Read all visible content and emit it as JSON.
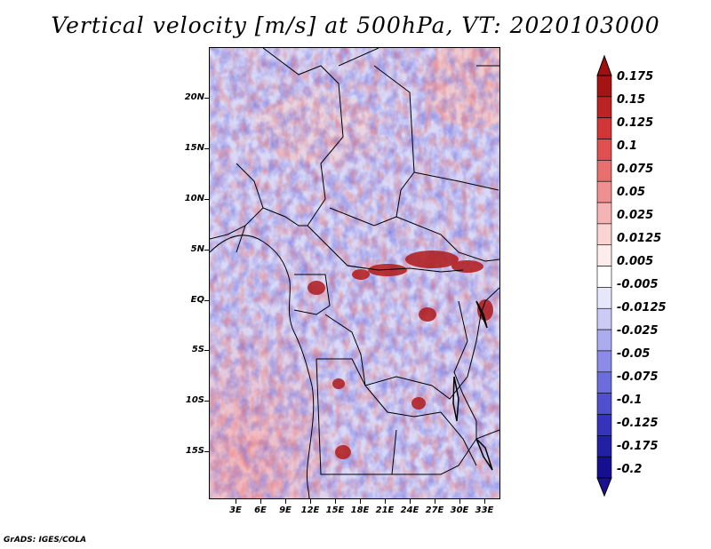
{
  "title": "Vertical velocity [m/s] at 500hPa, VT: 2020103000",
  "footer": "GrADS: IGES/COLA",
  "map": {
    "field": "vertical velocity",
    "level": "500hPa",
    "valid_time": "2020103000",
    "lon_range_deg": [
      0,
      35
    ],
    "lat_range_deg": [
      -20,
      25
    ],
    "lat_ticks": [
      {
        "value": 20,
        "label": "20N"
      },
      {
        "value": 15,
        "label": "15N"
      },
      {
        "value": 10,
        "label": "10N"
      },
      {
        "value": 5,
        "label": "5N"
      },
      {
        "value": 0,
        "label": "EQ"
      },
      {
        "value": -5,
        "label": "5S"
      },
      {
        "value": -10,
        "label": "10S"
      },
      {
        "value": -15,
        "label": "15S"
      }
    ],
    "lon_ticks": [
      {
        "value": 3,
        "label": "3E"
      },
      {
        "value": 6,
        "label": "6E"
      },
      {
        "value": 9,
        "label": "9E"
      },
      {
        "value": 12,
        "label": "12E"
      },
      {
        "value": 15,
        "label": "15E"
      },
      {
        "value": 18,
        "label": "18E"
      },
      {
        "value": 21,
        "label": "21E"
      },
      {
        "value": 24,
        "label": "24E"
      },
      {
        "value": 27,
        "label": "27E"
      },
      {
        "value": 30,
        "label": "30E"
      },
      {
        "value": 33,
        "label": "33E"
      }
    ]
  },
  "colorbar": {
    "top_arrow_color": "#a01010",
    "bottom_arrow_color": "#1a1090",
    "bins": [
      {
        "label": "0.175",
        "color": "#a51414"
      },
      {
        "label": "0.15",
        "color": "#bc2323"
      },
      {
        "label": "0.125",
        "color": "#d13535"
      },
      {
        "label": "0.1",
        "color": "#e05050"
      },
      {
        "label": "0.075",
        "color": "#e96f6f"
      },
      {
        "label": "0.05",
        "color": "#f09090"
      },
      {
        "label": "0.025",
        "color": "#f6b3b3"
      },
      {
        "label": "0.0125",
        "color": "#fad3d3"
      },
      {
        "label": "0.005",
        "color": "#fdecec"
      },
      {
        "label": "-0.005",
        "color": "#ffffff"
      },
      {
        "label": "-0.0125",
        "color": "#e7e7fb"
      },
      {
        "label": "-0.025",
        "color": "#cbcbf6"
      },
      {
        "label": "-0.05",
        "color": "#ababf0"
      },
      {
        "label": "-0.075",
        "color": "#8c8ce8"
      },
      {
        "label": "-0.1",
        "color": "#6c6cdd"
      },
      {
        "label": "-0.125",
        "color": "#4f4fcf"
      },
      {
        "label": "-0.175",
        "color": "#3434bd"
      },
      {
        "label": "-0.2",
        "color": "#2020a5"
      },
      {
        "label": "",
        "color": "#15108f"
      }
    ]
  }
}
